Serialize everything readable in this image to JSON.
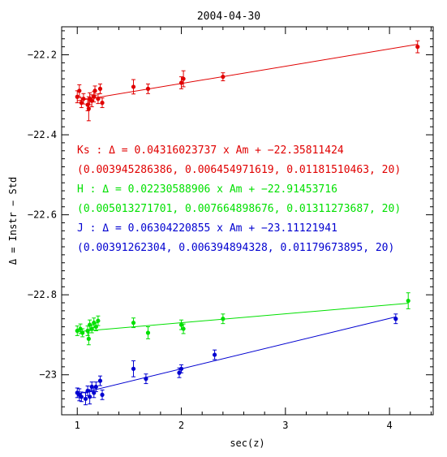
{
  "chart_data": {
    "type": "scatter",
    "title": "2004-04-30",
    "xlabel": "sec(z)",
    "ylabel": "Δ = Instr − Std",
    "xlim": [
      0.85,
      4.42
    ],
    "ylim": [
      -23.1,
      -22.13
    ],
    "xticks": [
      1,
      2,
      3,
      4
    ],
    "xtick_labels": [
      "1",
      "2",
      "3",
      "4"
    ],
    "yticks": [
      -23.0,
      -22.8,
      -22.6,
      -22.4,
      -22.2
    ],
    "ytick_labels": [
      "−23",
      "−22.8",
      "−22.6",
      "−22.4",
      "−22.2"
    ],
    "grid": false,
    "series": [
      {
        "name": "Ks",
        "color": "#e00000",
        "slope": 0.04316023737,
        "intercept": -22.35811424,
        "points": [
          {
            "x": 1.0,
            "y": -22.305,
            "err": 0.015
          },
          {
            "x": 1.02,
            "y": -22.29,
            "err": 0.015
          },
          {
            "x": 1.04,
            "y": -22.32,
            "err": 0.012
          },
          {
            "x": 1.06,
            "y": -22.31,
            "err": 0.013
          },
          {
            "x": 1.1,
            "y": -22.325,
            "err": 0.015
          },
          {
            "x": 1.11,
            "y": -22.335,
            "err": 0.03
          },
          {
            "x": 1.12,
            "y": -22.31,
            "err": 0.015
          },
          {
            "x": 1.14,
            "y": -22.315,
            "err": 0.015
          },
          {
            "x": 1.16,
            "y": -22.305,
            "err": 0.013
          },
          {
            "x": 1.17,
            "y": -22.29,
            "err": 0.012
          },
          {
            "x": 1.2,
            "y": -22.31,
            "err": 0.012
          },
          {
            "x": 1.22,
            "y": -22.285,
            "err": 0.012
          },
          {
            "x": 1.24,
            "y": -22.32,
            "err": 0.012
          },
          {
            "x": 1.54,
            "y": -22.28,
            "err": 0.018
          },
          {
            "x": 1.68,
            "y": -22.285,
            "err": 0.012
          },
          {
            "x": 2.0,
            "y": -22.27,
            "err": 0.015
          },
          {
            "x": 2.02,
            "y": -22.26,
            "err": 0.02
          },
          {
            "x": 2.4,
            "y": -22.255,
            "err": 0.01
          },
          {
            "x": 4.27,
            "y": -22.18,
            "err": 0.015
          }
        ]
      },
      {
        "name": "H",
        "color": "#00e000",
        "slope": 0.02230588906,
        "intercept": -22.91453716,
        "points": [
          {
            "x": 1.0,
            "y": -22.89,
            "err": 0.012
          },
          {
            "x": 1.03,
            "y": -22.885,
            "err": 0.012
          },
          {
            "x": 1.05,
            "y": -22.895,
            "err": 0.01
          },
          {
            "x": 1.1,
            "y": -22.89,
            "err": 0.012
          },
          {
            "x": 1.11,
            "y": -22.91,
            "err": 0.015
          },
          {
            "x": 1.12,
            "y": -22.875,
            "err": 0.012
          },
          {
            "x": 1.14,
            "y": -22.885,
            "err": 0.01
          },
          {
            "x": 1.16,
            "y": -22.87,
            "err": 0.012
          },
          {
            "x": 1.18,
            "y": -22.88,
            "err": 0.01
          },
          {
            "x": 1.2,
            "y": -22.865,
            "err": 0.012
          },
          {
            "x": 1.54,
            "y": -22.87,
            "err": 0.012
          },
          {
            "x": 1.68,
            "y": -22.895,
            "err": 0.015
          },
          {
            "x": 2.0,
            "y": -22.875,
            "err": 0.012
          },
          {
            "x": 2.02,
            "y": -22.885,
            "err": 0.012
          },
          {
            "x": 2.4,
            "y": -22.86,
            "err": 0.012
          },
          {
            "x": 4.18,
            "y": -22.815,
            "err": 0.02
          }
        ]
      },
      {
        "name": "J",
        "color": "#0000d0",
        "slope": 0.06304220855,
        "intercept": -23.11121941,
        "points": [
          {
            "x": 1.0,
            "y": -23.045,
            "err": 0.012
          },
          {
            "x": 1.02,
            "y": -23.05,
            "err": 0.015
          },
          {
            "x": 1.04,
            "y": -23.055,
            "err": 0.012
          },
          {
            "x": 1.08,
            "y": -23.06,
            "err": 0.015
          },
          {
            "x": 1.1,
            "y": -23.04,
            "err": 0.012
          },
          {
            "x": 1.12,
            "y": -23.055,
            "err": 0.018
          },
          {
            "x": 1.14,
            "y": -23.03,
            "err": 0.012
          },
          {
            "x": 1.16,
            "y": -23.045,
            "err": 0.012
          },
          {
            "x": 1.18,
            "y": -23.03,
            "err": 0.012
          },
          {
            "x": 1.22,
            "y": -23.015,
            "err": 0.012
          },
          {
            "x": 1.24,
            "y": -23.05,
            "err": 0.012
          },
          {
            "x": 1.54,
            "y": -22.985,
            "err": 0.02
          },
          {
            "x": 1.66,
            "y": -23.01,
            "err": 0.012
          },
          {
            "x": 1.98,
            "y": -22.995,
            "err": 0.012
          },
          {
            "x": 2.0,
            "y": -22.985,
            "err": 0.01
          },
          {
            "x": 2.32,
            "y": -22.95,
            "err": 0.012
          },
          {
            "x": 4.06,
            "y": -22.86,
            "err": 0.012
          }
        ]
      }
    ],
    "annotations": [
      {
        "id": "ks-eq",
        "text": "Ks : Δ  = 0.04316023737 x Am + −22.35811424",
        "color": "#e00000"
      },
      {
        "id": "ks-err",
        "text": "(0.003945286386, 0.006454971619, 0.01181510463, 20)",
        "color": "#e00000"
      },
      {
        "id": "h-eq",
        "text": "H : Δ  = 0.02230588906 x Am + −22.91453716",
        "color": "#00e000"
      },
      {
        "id": "h-err",
        "text": "(0.005013271701, 0.007664898676, 0.01311273687, 20)",
        "color": "#00e000"
      },
      {
        "id": "j-eq",
        "text": "J : Δ  = 0.06304220855 x Am + −23.11121941",
        "color": "#0000d0"
      },
      {
        "id": "j-err",
        "text": "(0.00391262304, 0.006394894328, 0.01179673895, 20)",
        "color": "#0000d0"
      }
    ]
  }
}
